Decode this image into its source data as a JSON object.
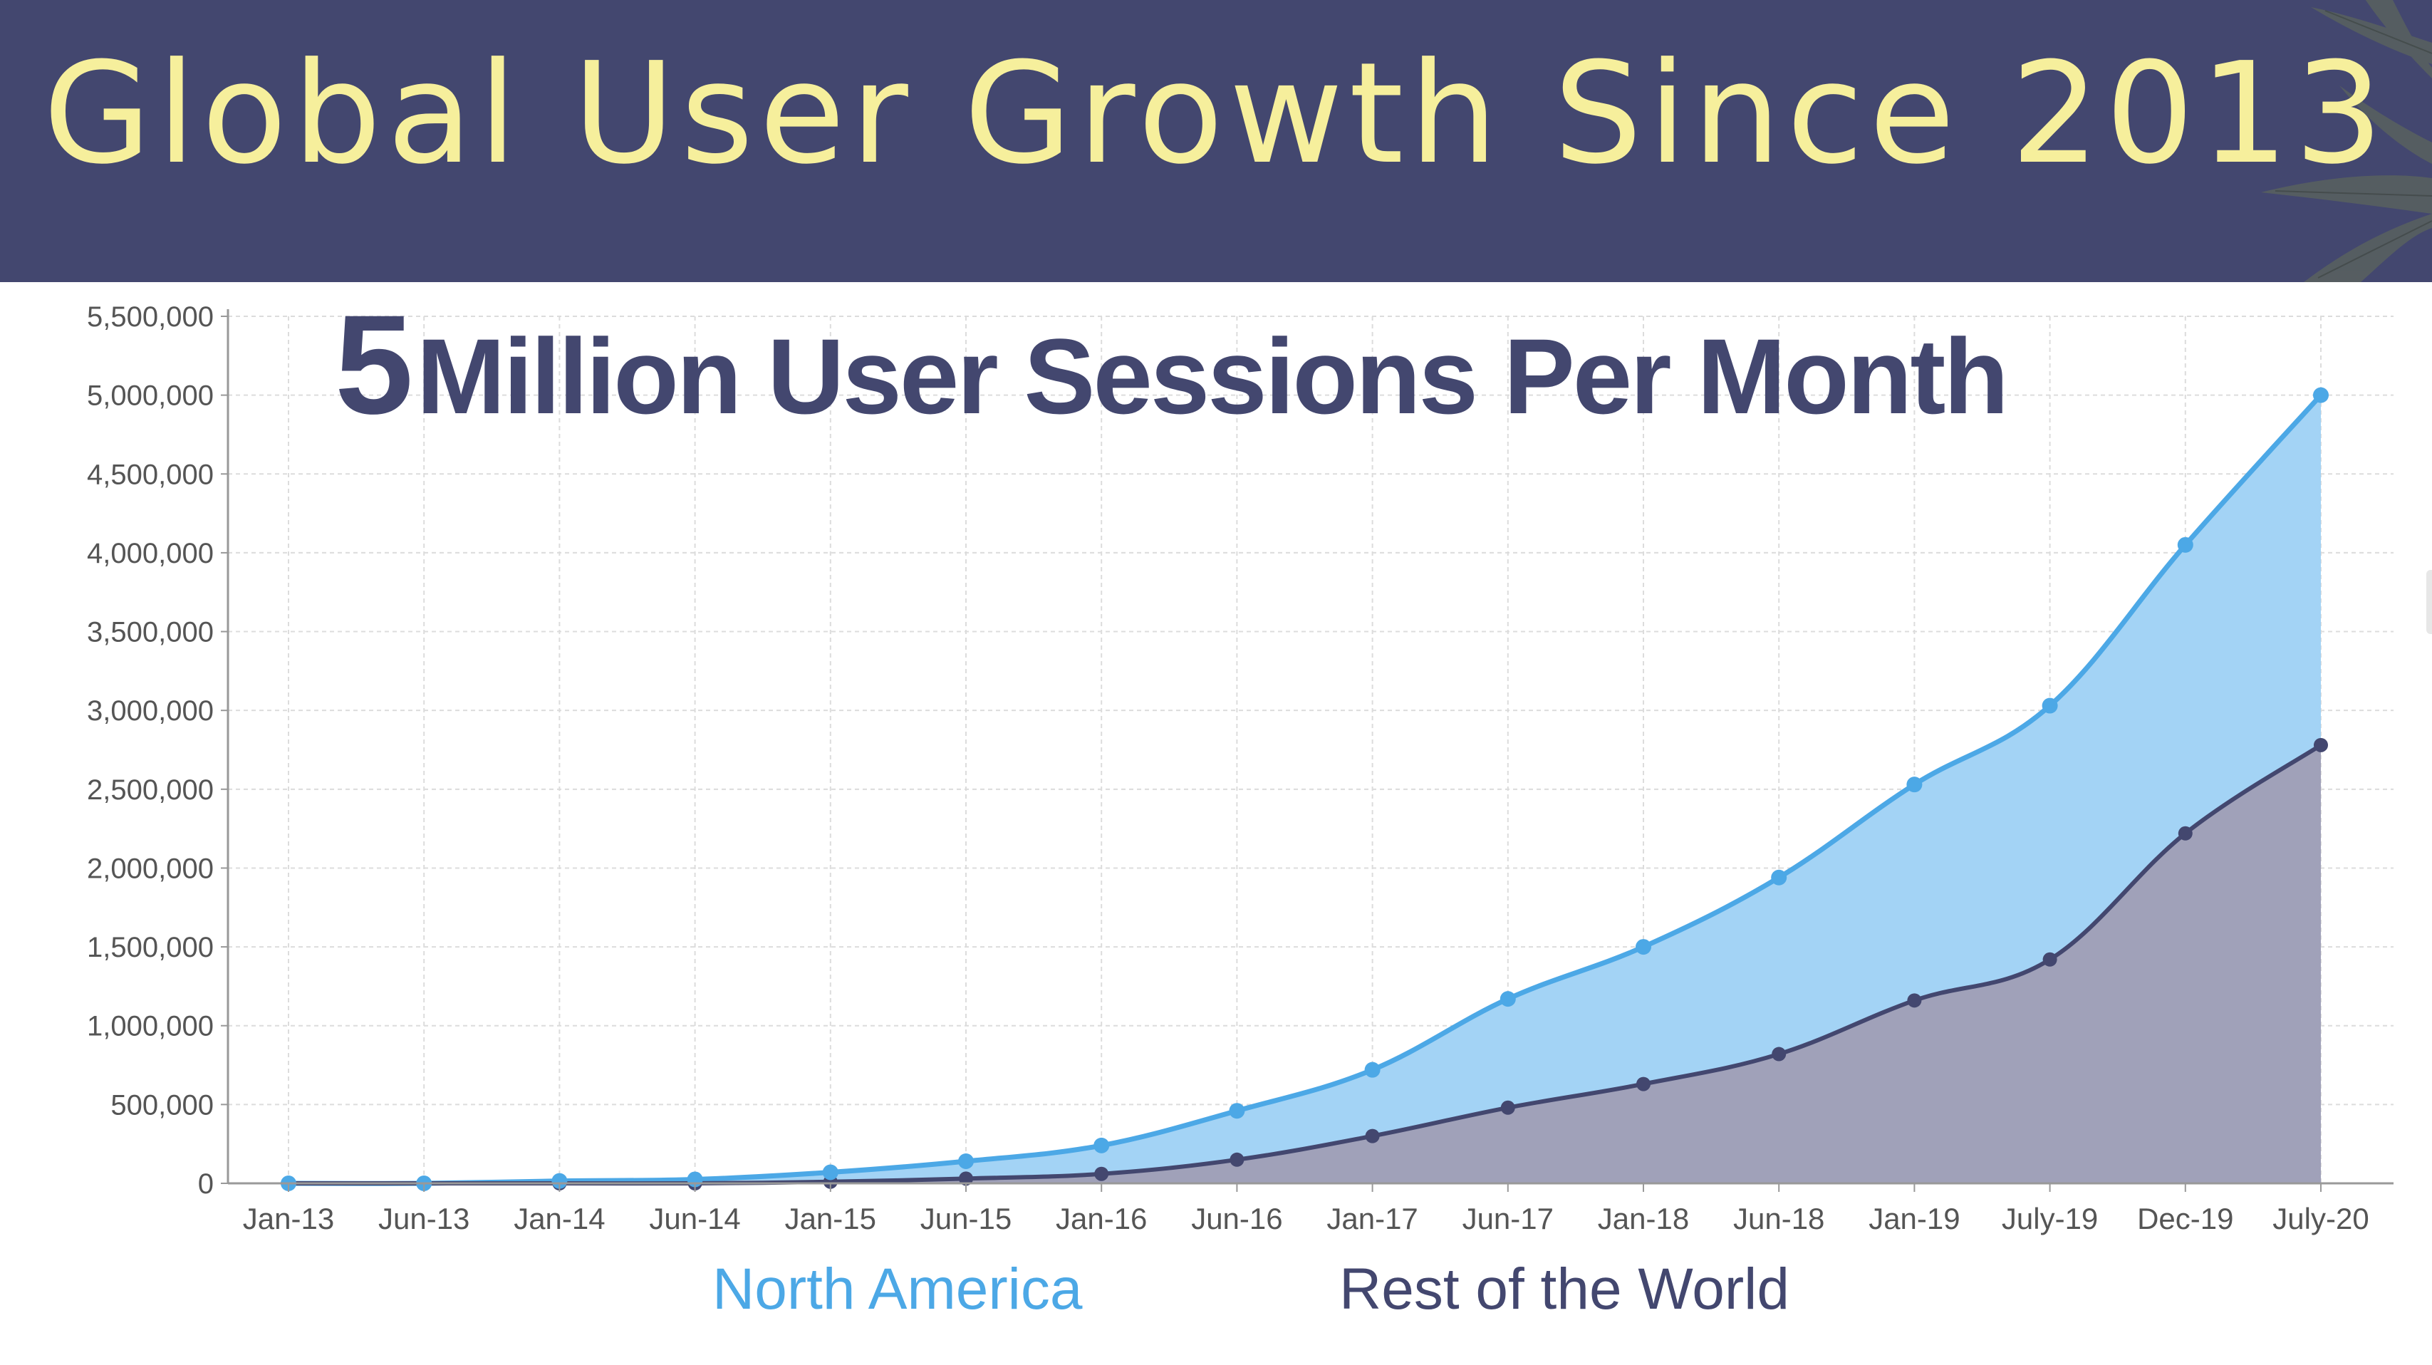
{
  "banner": {
    "title": "Global User Growth Since 2013",
    "background_color": "#43476f",
    "title_color": "#f6ef9c",
    "decoration": "leaf-icon"
  },
  "headline": {
    "big_number": "5",
    "text": "Million User Sessions Per Month"
  },
  "legend": {
    "north_america": "North America",
    "rest_of_world": "Rest of the World"
  },
  "chart_data": {
    "type": "area",
    "title": "5 Million User Sessions Per Month",
    "xlabel": "",
    "ylabel": "",
    "categories": [
      "Jan-13",
      "Jun-13",
      "Jan-14",
      "Jun-14",
      "Jan-15",
      "Jun-15",
      "Jan-16",
      "Jun-16",
      "Jan-17",
      "Jun-17",
      "Jan-18",
      "Jun-18",
      "Jan-19",
      "July-19",
      "Dec-19",
      "July-20"
    ],
    "ylim": [
      0,
      5500000
    ],
    "yticks": [
      0,
      500000,
      1000000,
      1500000,
      2000000,
      2500000,
      3000000,
      3500000,
      4000000,
      4500000,
      5000000,
      5500000
    ],
    "ytick_labels": [
      "0",
      "500,000",
      "1,000,000",
      "1,500,000",
      "2,000,000",
      "2,500,000",
      "3,000,000",
      "3,500,000",
      "4,000,000",
      "4,500,000",
      "5,000,000",
      "5,500,000"
    ],
    "grid": true,
    "stacked": true,
    "legend_position": "bottom",
    "series": [
      {
        "name": "Rest of the World",
        "color": "#43476f",
        "fill": "#a0a1b9",
        "values": [
          0,
          0,
          0,
          0,
          10000,
          30000,
          60000,
          150000,
          300000,
          480000,
          630000,
          820000,
          1160000,
          1420000,
          2220000,
          2780000
        ]
      },
      {
        "name": "North America",
        "color": "#4ca8e6",
        "fill": "#a3d3f5",
        "values": [
          0,
          0,
          15000,
          25000,
          60000,
          110000,
          180000,
          310000,
          420000,
          690000,
          870000,
          1120000,
          1370000,
          1610000,
          1830000,
          2220000
        ]
      }
    ],
    "totals": [
      0,
      0,
      15000,
      25000,
      70000,
      140000,
      240000,
      460000,
      720000,
      1170000,
      1500000,
      1940000,
      2530000,
      3030000,
      4050000,
      5000000
    ]
  }
}
